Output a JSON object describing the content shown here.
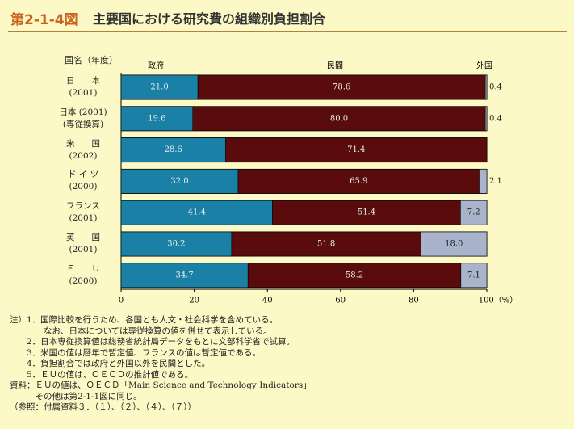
{
  "chart_data": {
    "type": "stacked-barh",
    "figure_number": "第2-1-4図",
    "title": "主要国における研究費の組織別負担割合",
    "category_axis_label": "国名（年度）",
    "categories": [
      "日　　本\n(2001)",
      "日本 (2001)\n(専従換算)",
      "米　　国\n(2002)",
      "ド イ ツ\n(2000)",
      "フランス\n(2001)",
      "英　　国\n(2001)",
      "Ｅ　　Ｕ\n(2000)"
    ],
    "series": [
      {
        "name": "政府",
        "color": "#1b80a6",
        "values": [
          21.0,
          19.6,
          28.6,
          32.0,
          41.4,
          30.2,
          34.7
        ],
        "value_labels": [
          "21.0",
          "19.6",
          "28.6",
          "32.0",
          "41.4",
          "30.2",
          "34.7"
        ]
      },
      {
        "name": "民間",
        "color": "#5a0b0b",
        "values": [
          78.6,
          80.0,
          71.4,
          65.9,
          51.4,
          51.8,
          58.2
        ],
        "value_labels": [
          "78.6",
          "80.0",
          "71.4",
          "65.9",
          "51.4",
          "51.8",
          "58.2"
        ]
      },
      {
        "name": "外国",
        "color": "#a9b3cb",
        "values": [
          0.4,
          0.4,
          null,
          2.1,
          7.2,
          18.0,
          7.1
        ],
        "value_labels": [
          "0.4",
          "0.4",
          null,
          "2.1",
          "7.2",
          "18.0",
          "7.1"
        ]
      }
    ],
    "xlim": [
      0,
      100
    ],
    "xticks": [
      0,
      20,
      40,
      60,
      80,
      {
        "value": 100,
        "label": "100（%）"
      }
    ]
  },
  "notes": [
    "注）1．国際比較を行うため、各国とも人文・社会科学を含めている。",
    "　　　　なお、日本については専従換算の値を併せて表示している。",
    "　　2．日本専従換算値は総務省統計局データをもとに文部科学省で試算。",
    "　　3．米国の値は暦年で暫定値、フランスの値は暫定値である。",
    "　　4．負担割合では政府と外国以外を民間とした。",
    "　　5．ＥＵの値は、ＯＥＣＤの推計値である。",
    "資料：ＥＵの値は、ＯＥＣＤ「Main Science and Technology Indicators」",
    "　　　その他は第2-1-1図に同じ。",
    "（参照：付属資料３．（１）、（２）、（４）、（７））"
  ]
}
